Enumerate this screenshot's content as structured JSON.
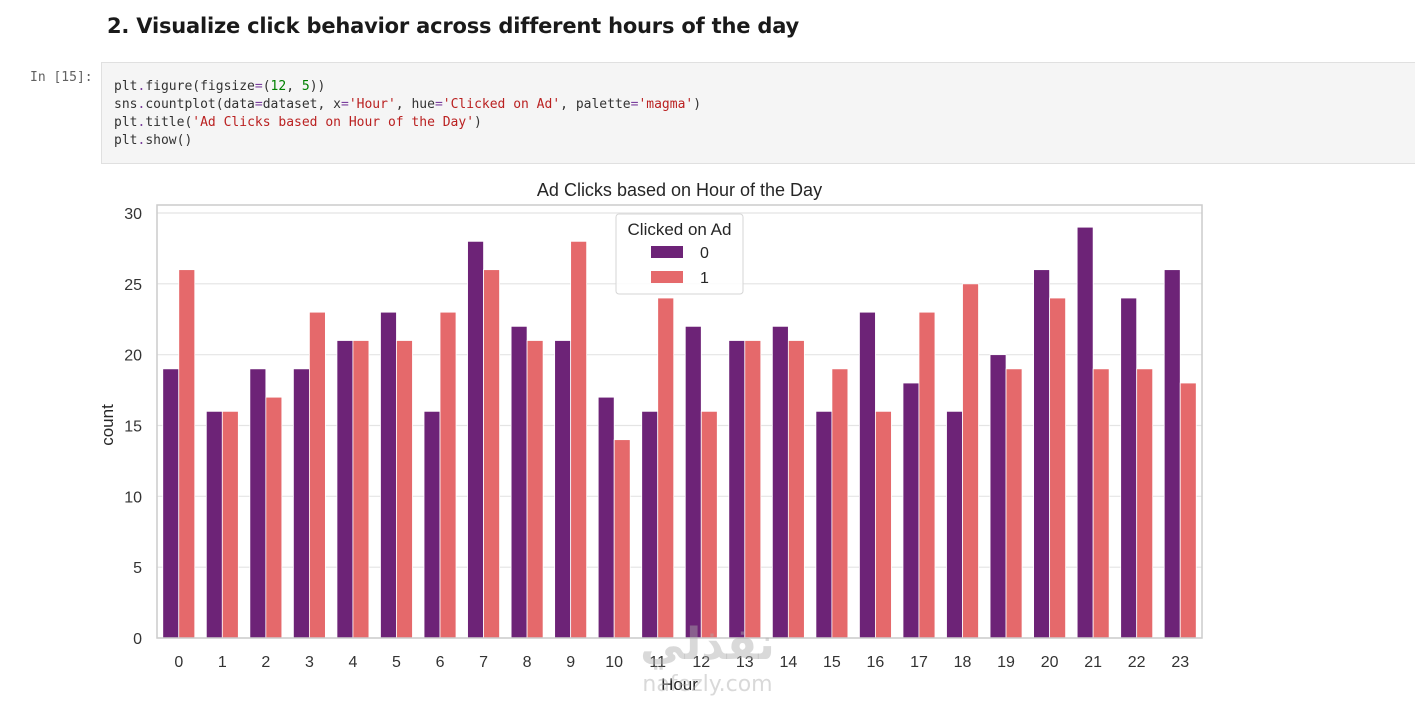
{
  "section": {
    "heading": "2. Visualize click behavior across different hours of the day"
  },
  "cell": {
    "prompt": "In [15]:",
    "code_lines": [
      [
        {
          "t": "plt"
        },
        {
          "t": ".",
          "c": "op"
        },
        {
          "t": "figure(figsize"
        },
        {
          "t": "=",
          "c": "op"
        },
        {
          "t": "("
        },
        {
          "t": "12",
          "c": "num"
        },
        {
          "t": ", "
        },
        {
          "t": "5",
          "c": "num"
        },
        {
          "t": "))"
        }
      ],
      [
        {
          "t": "sns"
        },
        {
          "t": ".",
          "c": "op"
        },
        {
          "t": "countplot(data"
        },
        {
          "t": "=",
          "c": "op"
        },
        {
          "t": "dataset, x"
        },
        {
          "t": "=",
          "c": "op"
        },
        {
          "t": "'Hour'",
          "c": "str"
        },
        {
          "t": ", hue"
        },
        {
          "t": "=",
          "c": "op"
        },
        {
          "t": "'Clicked on Ad'",
          "c": "str"
        },
        {
          "t": ", palette"
        },
        {
          "t": "=",
          "c": "op"
        },
        {
          "t": "'magma'",
          "c": "str"
        },
        {
          "t": ")"
        }
      ],
      [
        {
          "t": "plt"
        },
        {
          "t": ".",
          "c": "op"
        },
        {
          "t": "title("
        },
        {
          "t": "'Ad Clicks based on Hour of the Day'",
          "c": "str"
        },
        {
          "t": ")"
        }
      ],
      [
        {
          "t": "plt"
        },
        {
          "t": ".",
          "c": "op"
        },
        {
          "t": "show()"
        }
      ]
    ]
  },
  "chart_data": {
    "type": "bar",
    "title": "Ad Clicks based on Hour of the Day",
    "xlabel": "Hour",
    "ylabel": "count",
    "ylim": [
      0,
      30
    ],
    "yticks": [
      0,
      5,
      10,
      15,
      20,
      25,
      30
    ],
    "grid": true,
    "legend": {
      "title": "Clicked on Ad",
      "placement": "top-center"
    },
    "categories": [
      "0",
      "1",
      "2",
      "3",
      "4",
      "5",
      "6",
      "7",
      "8",
      "9",
      "10",
      "11",
      "12",
      "13",
      "14",
      "15",
      "16",
      "17",
      "18",
      "19",
      "20",
      "21",
      "22",
      "23"
    ],
    "series": [
      {
        "name": "0",
        "color": "#6d2377",
        "values": [
          19,
          16,
          19,
          19,
          21,
          23,
          16,
          28,
          22,
          21,
          17,
          16,
          22,
          21,
          22,
          16,
          23,
          18,
          16,
          20,
          26,
          29,
          24,
          26
        ]
      },
      {
        "name": "1",
        "color": "#e5696b",
        "values": [
          26,
          16,
          17,
          23,
          21,
          21,
          23,
          26,
          21,
          28,
          14,
          24,
          16,
          21,
          21,
          19,
          16,
          23,
          25,
          19,
          24,
          19,
          19,
          18
        ]
      }
    ]
  },
  "watermark": {
    "brand": "نفذلي",
    "domain": "nafezly.com"
  }
}
